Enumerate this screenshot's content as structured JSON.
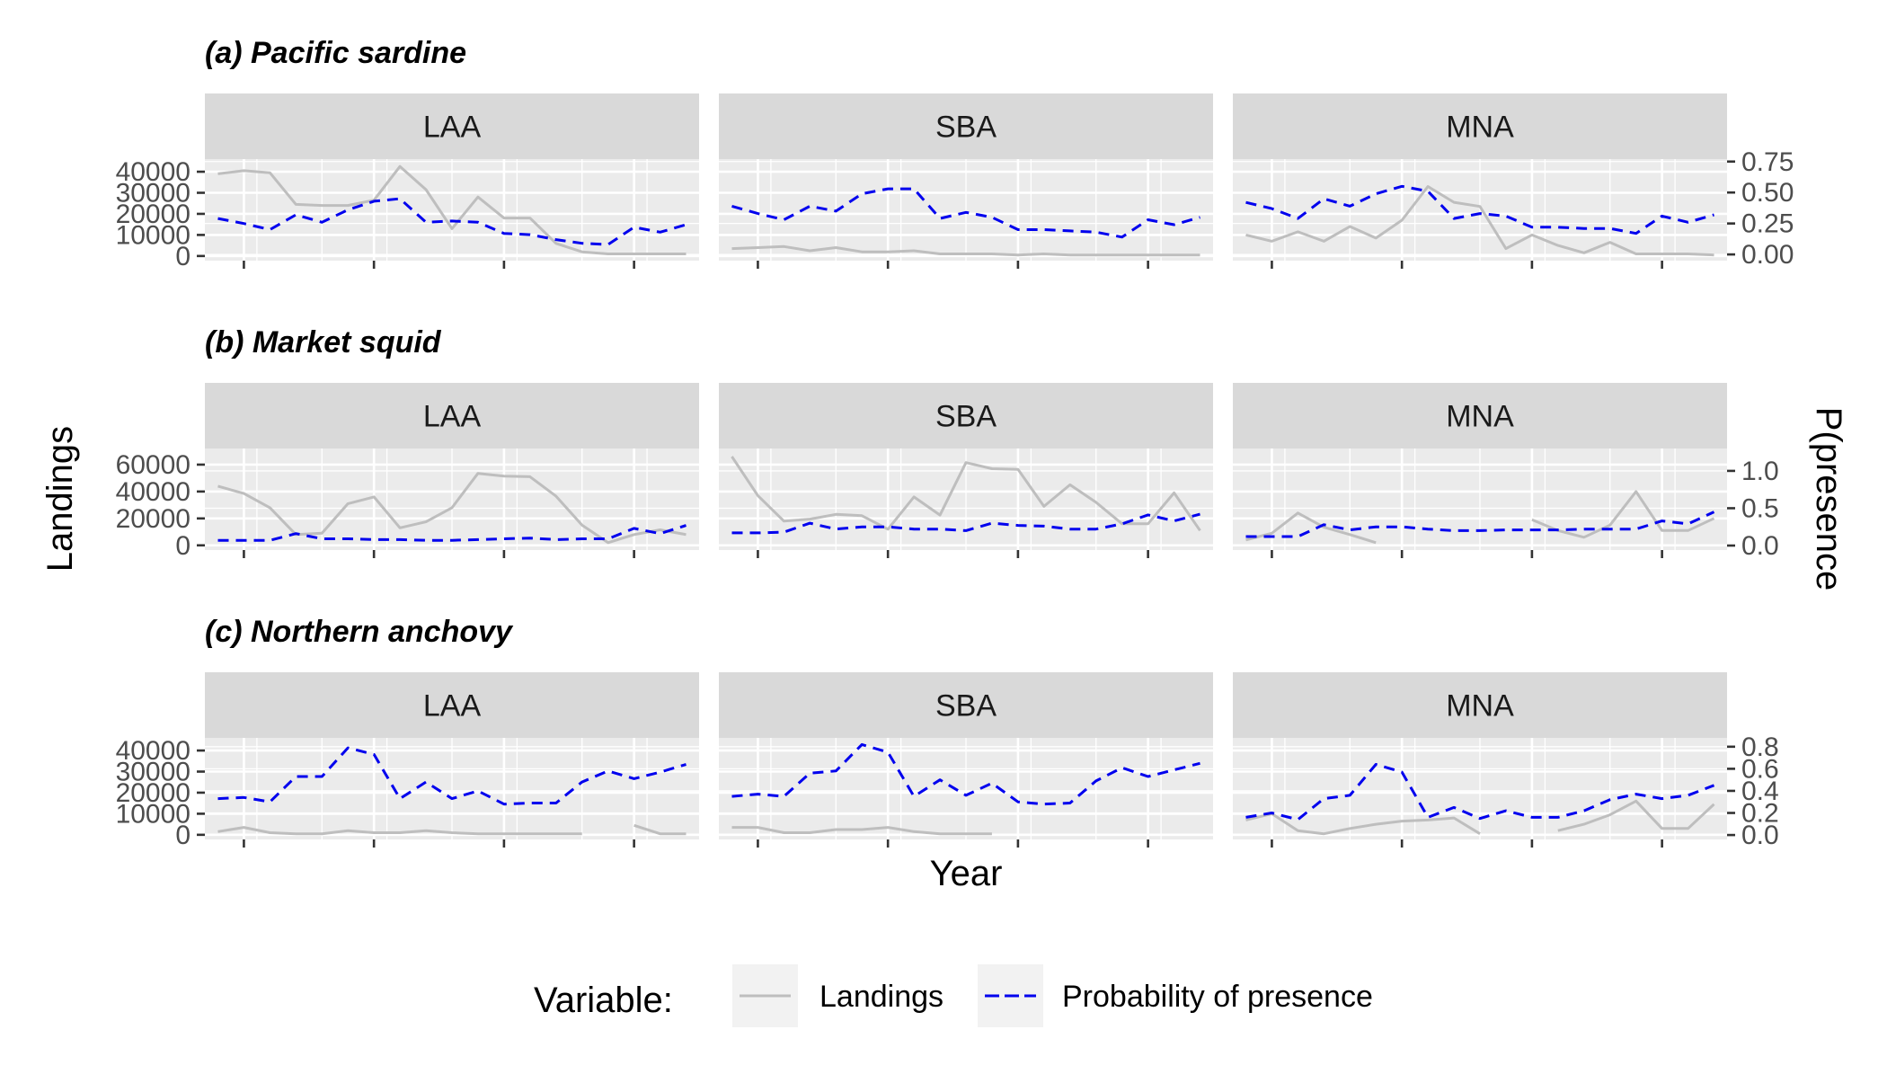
{
  "chart_data": {
    "type": "line",
    "x_axis": {
      "label": "Year",
      "ticks": []
    },
    "y_axis_left": {
      "label": "Landings"
    },
    "y_axis_right": {
      "label": "P(presence"
    },
    "legend": {
      "title": "Variable:",
      "placement": "bottom",
      "entries": [
        {
          "name": "Landings",
          "color": "#bebebe",
          "linetype": "solid"
        },
        {
          "name": "Probability of presence",
          "color": "#0000ee",
          "linetype": "dashed"
        }
      ]
    },
    "x_range": [
      1,
      19
    ],
    "grid": true,
    "rows": [
      {
        "title": "(a) Pacific sardine",
        "landings_axis": {
          "ticks": [
            0,
            10000,
            20000,
            30000,
            40000
          ],
          "tick_labels": [
            "0",
            "10000",
            "20000",
            "30000",
            "40000"
          ],
          "range": [
            -2200,
            46000
          ]
        },
        "presence_axis": {
          "ticks": [
            0,
            0.25,
            0.5,
            0.75
          ],
          "tick_labels": [
            "0.00",
            "0.25",
            "0.50",
            "0.75"
          ],
          "range": [
            -0.05,
            0.77
          ]
        },
        "panels": [
          {
            "port": "LAA",
            "landings": [
              39000,
              40500,
              39500,
              24500,
              24000,
              24000,
              26500,
              42500,
              31500,
              13000,
              28000,
              18000,
              18000,
              6000,
              2000,
              1000,
              1000,
              1000,
              1000
            ],
            "presence": [
              0.29,
              0.25,
              0.2,
              0.32,
              0.26,
              0.36,
              0.43,
              0.45,
              0.26,
              0.27,
              0.26,
              0.17,
              0.16,
              0.12,
              0.09,
              0.08,
              0.22,
              0.18,
              0.24
            ]
          },
          {
            "port": "SBA",
            "landings": [
              3500,
              4000,
              4500,
              2500,
              4000,
              2000,
              2000,
              2500,
              1000,
              1000,
              1000,
              500,
              1000,
              500,
              500,
              500,
              500,
              500,
              500
            ],
            "presence": [
              0.39,
              0.33,
              0.28,
              0.39,
              0.35,
              0.49,
              0.53,
              0.53,
              0.29,
              0.34,
              0.3,
              0.2,
              0.2,
              0.19,
              0.18,
              0.14,
              0.28,
              0.24,
              0.3
            ]
          },
          {
            "port": "MNA",
            "landings": [
              10000,
              7000,
              11500,
              7000,
              14000,
              8500,
              17000,
              33000,
              25500,
              23500,
              3500,
              10000,
              5000,
              1500,
              6500,
              1000,
              1000,
              1000,
              500
            ],
            "presence": [
              0.42,
              0.37,
              0.29,
              0.45,
              0.39,
              0.49,
              0.55,
              0.51,
              0.29,
              0.33,
              0.31,
              0.22,
              0.22,
              0.21,
              0.21,
              0.17,
              0.31,
              0.26,
              0.32
            ]
          }
        ]
      },
      {
        "title": "(b) Market squid",
        "landings_axis": {
          "ticks": [
            0,
            20000,
            40000,
            60000
          ],
          "tick_labels": [
            "0",
            "20000",
            "40000",
            "60000"
          ],
          "range": [
            -3500,
            72000
          ]
        },
        "presence_axis": {
          "ticks": [
            0,
            0.5,
            1.0
          ],
          "tick_labels": [
            "0.0",
            "0.5",
            "1.0"
          ],
          "range": [
            -0.06,
            1.3
          ]
        },
        "panels": [
          {
            "port": "LAA",
            "landings": [
              44000,
              38500,
              28000,
              8000,
              9000,
              31000,
              36000,
              13000,
              17500,
              28000,
              53500,
              51500,
              51000,
              36500,
              15000,
              2000,
              8000,
              11500,
              8000
            ],
            "presence": [
              0.07,
              0.07,
              0.07,
              0.16,
              0.09,
              0.09,
              0.08,
              0.08,
              0.07,
              0.07,
              0.08,
              0.09,
              0.1,
              0.08,
              0.09,
              0.09,
              0.23,
              0.16,
              0.27
            ]
          },
          {
            "port": "SBA",
            "landings": [
              66000,
              37000,
              18000,
              19500,
              23000,
              22000,
              12000,
              36000,
              22500,
              61500,
              57000,
              56500,
              29000,
              45000,
              32000,
              16000,
              16000,
              39000,
              11000
            ],
            "presence": [
              0.17,
              0.17,
              0.18,
              0.3,
              0.22,
              0.25,
              0.25,
              0.22,
              0.22,
              0.2,
              0.3,
              0.27,
              0.26,
              0.22,
              0.22,
              0.29,
              0.41,
              0.33,
              0.42
            ]
          },
          {
            "port": "MNA",
            "landings": [
              4000,
              9000,
              24000,
              13500,
              8000,
              2000,
              null,
              null,
              null,
              null,
              null,
              19000,
              11000,
              6000,
              15000,
              40000,
              11000,
              11000,
              20000
            ],
            "presence": [
              0.12,
              0.12,
              0.12,
              0.28,
              0.21,
              0.25,
              0.25,
              0.22,
              0.2,
              0.2,
              0.21,
              0.21,
              0.21,
              0.22,
              0.22,
              0.22,
              0.33,
              0.29,
              0.45
            ]
          }
        ]
      },
      {
        "title": "(c) Northern anchovy",
        "landings_axis": {
          "ticks": [
            0,
            10000,
            20000,
            30000,
            40000
          ],
          "tick_labels": [
            "0",
            "10000",
            "20000",
            "30000",
            "40000"
          ],
          "range": [
            -2200,
            46000
          ]
        },
        "presence_axis": {
          "ticks": [
            0,
            0.2,
            0.4,
            0.6,
            0.8
          ],
          "tick_labels": [
            "0.0",
            "0.2",
            "0.4",
            "0.6",
            "0.8"
          ],
          "range": [
            -0.04,
            0.88
          ]
        },
        "panels": [
          {
            "port": "LAA",
            "landings": [
              1500,
              3500,
              1000,
              500,
              500,
              2000,
              1000,
              1000,
              2000,
              1000,
              500,
              500,
              500,
              500,
              500,
              null,
              4500,
              500,
              500
            ],
            "presence": [
              0.33,
              0.34,
              0.3,
              0.53,
              0.53,
              0.79,
              0.73,
              0.33,
              0.48,
              0.33,
              0.4,
              0.28,
              0.29,
              0.29,
              0.48,
              0.58,
              0.51,
              0.57,
              0.64
            ]
          },
          {
            "port": "SBA",
            "landings": [
              3500,
              3500,
              1000,
              1000,
              2500,
              2500,
              3500,
              1500,
              500,
              500,
              500,
              null,
              null,
              null,
              null,
              null,
              null,
              null,
              null
            ],
            "presence": [
              0.35,
              0.37,
              0.35,
              0.56,
              0.58,
              0.82,
              0.75,
              0.35,
              0.5,
              0.36,
              0.47,
              0.3,
              0.28,
              0.29,
              0.49,
              0.61,
              0.53,
              0.59,
              0.65
            ]
          },
          {
            "port": "MNA",
            "landings": [
              7000,
              10000,
              2000,
              500,
              3000,
              5000,
              6500,
              7000,
              8000,
              500,
              null,
              null,
              2000,
              5000,
              9500,
              16000,
              3000,
              3000,
              14500
            ],
            "presence": [
              0.16,
              0.2,
              0.14,
              0.33,
              0.36,
              0.64,
              0.57,
              0.16,
              0.25,
              0.15,
              0.22,
              0.16,
              0.16,
              0.22,
              0.32,
              0.37,
              0.33,
              0.36,
              0.45
            ]
          }
        ]
      }
    ]
  }
}
